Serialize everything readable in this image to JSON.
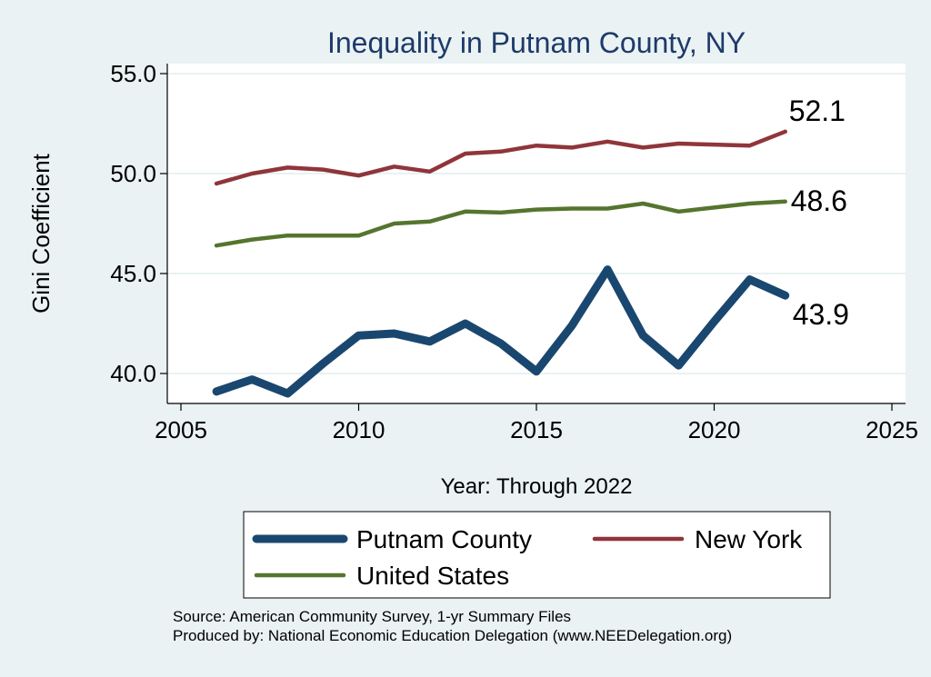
{
  "chart_data": {
    "type": "line",
    "title": "Inequality in Putnam County, NY",
    "xlabel": "Year: Through 2022",
    "ylabel": "Gini Coefficient",
    "xlim": [
      2005,
      2025
    ],
    "ylim": [
      38.5,
      55.5
    ],
    "x_ticks": [
      "2005",
      "2010",
      "2015",
      "2020",
      "2025"
    ],
    "y_ticks": [
      "40.0",
      "45.0",
      "50.0",
      "55.0"
    ],
    "grid": "horizontal",
    "x": [
      2006,
      2007,
      2008,
      2009,
      2010,
      2011,
      2012,
      2013,
      2014,
      2015,
      2016,
      2017,
      2018,
      2019,
      2020,
      2021,
      2022
    ],
    "series": [
      {
        "name": "Putnam County",
        "color": "#1a476f",
        "values": [
          39.1,
          39.7,
          39.0,
          40.5,
          41.9,
          42.0,
          41.6,
          42.5,
          41.5,
          40.1,
          42.4,
          45.2,
          41.9,
          40.4,
          42.6,
          44.7,
          43.9
        ],
        "end_label": "43.9"
      },
      {
        "name": "New York",
        "color": "#90353b",
        "values": [
          49.5,
          50.0,
          50.3,
          50.2,
          49.9,
          50.35,
          50.1,
          51.0,
          51.1,
          51.4,
          51.3,
          51.6,
          51.3,
          51.5,
          51.45,
          51.4,
          52.1
        ],
        "end_label": "52.1"
      },
      {
        "name": "United States",
        "color": "#55752f",
        "values": [
          46.4,
          46.7,
          46.9,
          46.9,
          46.9,
          47.5,
          47.6,
          48.1,
          48.05,
          48.2,
          48.25,
          48.25,
          48.5,
          48.1,
          48.3,
          48.5,
          48.6
        ],
        "end_label": "48.6"
      }
    ],
    "legend": {
      "position": "bottom"
    }
  },
  "notes": {
    "source": "Source: American Community Survey, 1-yr Summary Files",
    "produced_by": "Produced by: National Economic Education Delegation (www.NEEDelegation.org)"
  }
}
